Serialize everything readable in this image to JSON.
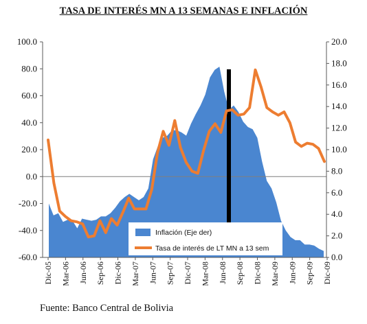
{
  "chart_data": {
    "type": "area+line",
    "title": "TASA DE INTERÉS MN A 13 SEMANAS E INFLACIÓN",
    "source": "Fuente: Banco Central de Bolivia",
    "left_axis": {
      "ylim": [
        -60,
        100
      ],
      "ticks": [
        "100.0",
        "80.0",
        "60.0",
        "40.0",
        "20.0",
        "0.0",
        "-20.0",
        "-40.0",
        "-60.0"
      ]
    },
    "right_axis": {
      "ylim": [
        0,
        20
      ],
      "ticks": [
        "20.0",
        "18.0",
        "16.0",
        "14.0",
        "12.0",
        "10.0",
        "8.0",
        "6.0",
        "4.0",
        "2.0",
        "0.0"
      ]
    },
    "x_tick_labels": [
      "Dic-05",
      "Mar-06",
      "Jun-06",
      "Sep-06",
      "Dic-06",
      "Mar-07",
      "Jun-07",
      "Sep-07",
      "Dic-07",
      "Mar-08",
      "Jun-08",
      "Sep-08",
      "Dic-08",
      "Mar-09",
      "Jun-09",
      "Sep-09",
      "Dic-09"
    ],
    "series": [
      {
        "name": "Inflación (Eje der)",
        "axis": "right",
        "color": "#4a86d0",
        "values": [
          5.0,
          3.9,
          4.1,
          3.3,
          3.5,
          3.4,
          2.7,
          3.6,
          3.5,
          3.4,
          3.5,
          3.8,
          3.8,
          4.1,
          4.6,
          5.2,
          5.6,
          5.9,
          5.6,
          5.3,
          5.6,
          6.4,
          9.1,
          10.3,
          11.1,
          11.3,
          11.8,
          11.8,
          11.6,
          11.3,
          12.4,
          13.3,
          14.1,
          15.1,
          16.7,
          17.4,
          17.7,
          15.4,
          13.7,
          14.1,
          13.5,
          12.6,
          12.1,
          11.9,
          11.1,
          8.9,
          7.1,
          6.4,
          5.1,
          3.4,
          2.5,
          1.9,
          1.6,
          1.6,
          1.2,
          1.2,
          1.1,
          0.8,
          0.6
        ]
      },
      {
        "name": "Tasa de interés de LT MN a 13 sem",
        "axis": "right",
        "color": "#ed7d31",
        "values": [
          10.9,
          6.9,
          4.3,
          3.8,
          3.4,
          3.3,
          3.1,
          1.9,
          2.0,
          3.4,
          2.3,
          3.6,
          3.0,
          4.2,
          5.5,
          4.5,
          4.5,
          4.5,
          6.3,
          9.7,
          11.7,
          10.4,
          12.7,
          10.2,
          8.8,
          8.0,
          7.8,
          9.9,
          11.7,
          12.4,
          11.6,
          13.6,
          13.7,
          13.2,
          13.3,
          13.9,
          17.4,
          15.8,
          13.9,
          13.5,
          13.2,
          13.5,
          12.5,
          10.7,
          10.3,
          10.6,
          10.5,
          10.1,
          8.9
        ]
      }
    ],
    "legend": [
      "Inflación (Eje der)",
      "Tasa de interés de LT MN a 13 sem"
    ],
    "legend_position": "bottom-center",
    "zero_line": true,
    "vertical_marker": "between Jun-08 and Sep-08"
  }
}
